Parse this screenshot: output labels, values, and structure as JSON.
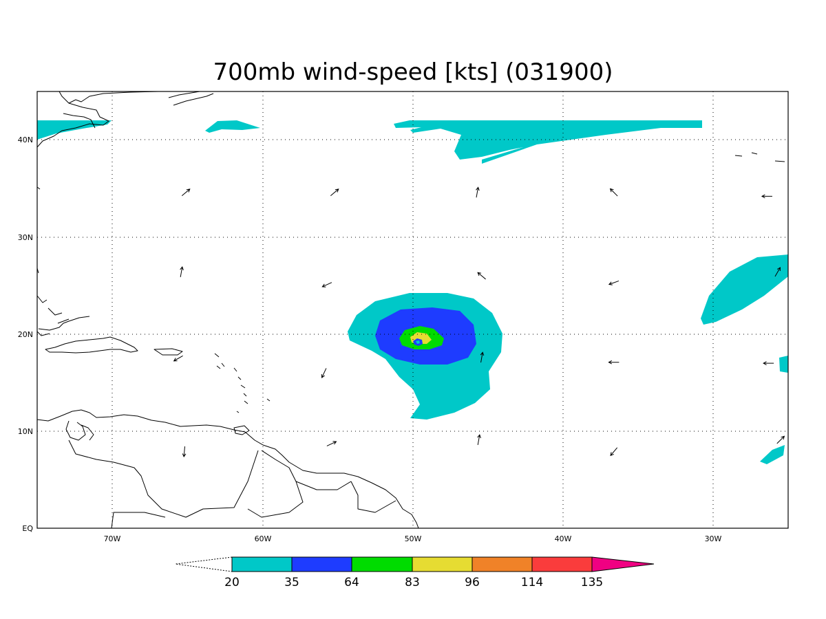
{
  "title": "700mb wind-speed [kts] (031900)",
  "map": {
    "lon_range": [
      -75,
      -25
    ],
    "lat_range": [
      0,
      45
    ],
    "lat_ticks": [
      {
        "value": 40,
        "label": "40N"
      },
      {
        "value": 30,
        "label": "30N"
      },
      {
        "value": 20,
        "label": "20N"
      },
      {
        "value": 10,
        "label": "10N"
      },
      {
        "value": 0,
        "label": "EQ"
      }
    ],
    "lon_ticks": [
      {
        "value": -70,
        "label": "70W"
      },
      {
        "value": -60,
        "label": "60W"
      },
      {
        "value": -50,
        "label": "50W"
      },
      {
        "value": -40,
        "label": "40W"
      },
      {
        "value": -30,
        "label": "30W"
      }
    ],
    "grid": true,
    "grid_style": "dotted"
  },
  "colorbar": {
    "levels": [
      "20",
      "35",
      "64",
      "83",
      "96",
      "114",
      "135"
    ],
    "colors": [
      "#00c8c8",
      "#1e3cff",
      "#00dc00",
      "#e6dc32",
      "#f08228",
      "#fa3c3c",
      "#f00082"
    ],
    "below_min": "white (dashed triangle)"
  },
  "storm": {
    "center_lon": -49.6,
    "center_lat": 19.7
  },
  "wind_vectors_lonlat": [
    [
      -65.1,
      34.6,
      40
    ],
    [
      -55.2,
      34.6,
      40
    ],
    [
      -45.7,
      34.6,
      80
    ],
    [
      -36.6,
      34.6,
      135
    ],
    [
      -26.4,
      34.2,
      180
    ],
    [
      -65.4,
      26.4,
      80
    ],
    [
      -55.7,
      25.1,
      205
    ],
    [
      -45.4,
      26.0,
      140
    ],
    [
      -36.6,
      25.3,
      200
    ],
    [
      -25.7,
      26.4,
      60
    ],
    [
      -65.6,
      17.5,
      210
    ],
    [
      -55.9,
      16.0,
      245
    ],
    [
      -45.4,
      17.6,
      80
    ],
    [
      -36.6,
      17.1,
      180
    ],
    [
      -26.3,
      17.0,
      180
    ],
    [
      -65.2,
      7.9,
      265
    ],
    [
      -55.4,
      8.7,
      25
    ],
    [
      -45.6,
      9.1,
      80
    ],
    [
      -36.6,
      7.9,
      230
    ],
    [
      -25.5,
      9.1,
      45
    ]
  ]
}
